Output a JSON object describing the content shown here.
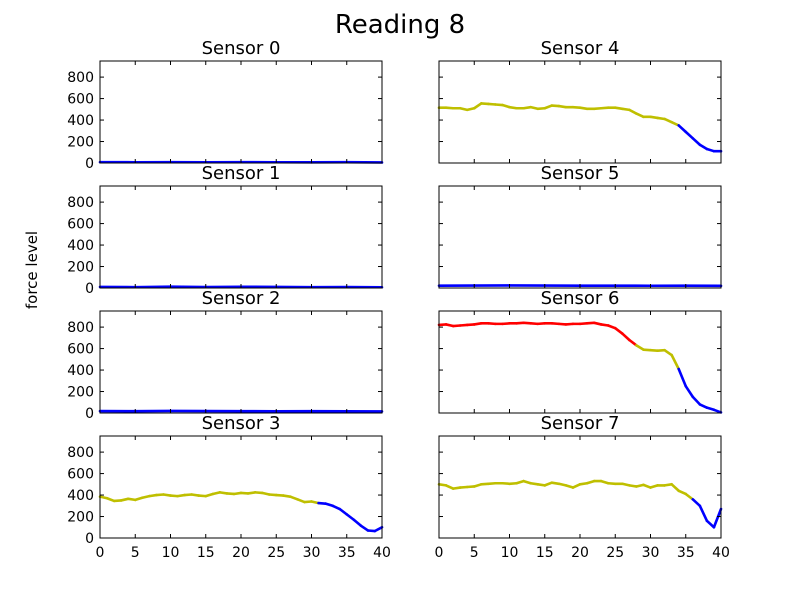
{
  "figure": {
    "title": "Reading 8",
    "ylabel": "force level"
  },
  "chart_data": {
    "type": "line",
    "xlim": [
      0,
      40
    ],
    "ylim": [
      0,
      950
    ],
    "xticks": [
      0,
      5,
      10,
      15,
      20,
      25,
      30,
      35,
      40
    ],
    "yticks": [
      0,
      200,
      400,
      600,
      800
    ],
    "level_colors": {
      "low": "#0000ff",
      "mid": "#bfbf00",
      "high": "#ff0000"
    },
    "panels": [
      {
        "title": "Sensor 0",
        "col": 0,
        "row": 0,
        "x": [
          0,
          5,
          10,
          15,
          20,
          25,
          30,
          35,
          40
        ],
        "y": [
          8,
          7,
          8,
          7,
          8,
          7,
          6,
          8,
          5
        ],
        "level": [
          "low",
          "low",
          "low",
          "low",
          "low",
          "low",
          "low",
          "low",
          "low"
        ]
      },
      {
        "title": "Sensor 1",
        "col": 0,
        "row": 1,
        "x": [
          0,
          5,
          10,
          15,
          20,
          25,
          30,
          35,
          40
        ],
        "y": [
          10,
          8,
          12,
          9,
          11,
          10,
          8,
          9,
          7
        ],
        "level": [
          "low",
          "low",
          "low",
          "low",
          "low",
          "low",
          "low",
          "low",
          "low"
        ]
      },
      {
        "title": "Sensor 2",
        "col": 0,
        "row": 2,
        "x": [
          0,
          5,
          10,
          15,
          20,
          25,
          30,
          35,
          40
        ],
        "y": [
          18,
          17,
          19,
          18,
          17,
          16,
          17,
          16,
          15
        ],
        "level": [
          "low",
          "low",
          "low",
          "low",
          "low",
          "low",
          "low",
          "low",
          "low"
        ]
      },
      {
        "title": "Sensor 3",
        "col": 0,
        "row": 3,
        "x": [
          0,
          1,
          2,
          3,
          4,
          5,
          6,
          7,
          8,
          9,
          10,
          11,
          12,
          13,
          14,
          15,
          16,
          17,
          18,
          19,
          20,
          21,
          22,
          23,
          24,
          25,
          26,
          27,
          28,
          29,
          30,
          31,
          32,
          33,
          34,
          35,
          36,
          37,
          38,
          39,
          40
        ],
        "y": [
          385,
          370,
          345,
          350,
          365,
          355,
          375,
          390,
          400,
          405,
          395,
          390,
          400,
          405,
          395,
          390,
          410,
          425,
          415,
          410,
          420,
          415,
          425,
          420,
          405,
          400,
          395,
          385,
          360,
          335,
          340,
          325,
          320,
          300,
          270,
          220,
          170,
          115,
          70,
          65,
          100
        ],
        "level": [
          "mid",
          "mid",
          "mid",
          "mid",
          "mid",
          "mid",
          "mid",
          "mid",
          "mid",
          "mid",
          "mid",
          "mid",
          "mid",
          "mid",
          "mid",
          "mid",
          "mid",
          "mid",
          "mid",
          "mid",
          "mid",
          "mid",
          "mid",
          "mid",
          "mid",
          "mid",
          "mid",
          "mid",
          "mid",
          "mid",
          "mid",
          "mid",
          "low",
          "low",
          "low",
          "low",
          "low",
          "low",
          "low",
          "low",
          "low"
        ]
      },
      {
        "title": "Sensor 4",
        "col": 1,
        "row": 0,
        "x": [
          0,
          1,
          2,
          3,
          4,
          5,
          6,
          7,
          8,
          9,
          10,
          11,
          12,
          13,
          14,
          15,
          16,
          17,
          18,
          19,
          20,
          21,
          22,
          23,
          24,
          25,
          26,
          27,
          28,
          29,
          30,
          31,
          32,
          33,
          34,
          35,
          36,
          37,
          38,
          39,
          40
        ],
        "y": [
          515,
          515,
          510,
          510,
          495,
          510,
          555,
          550,
          545,
          540,
          520,
          510,
          510,
          520,
          505,
          510,
          535,
          530,
          520,
          520,
          515,
          505,
          505,
          510,
          515,
          515,
          505,
          495,
          460,
          430,
          430,
          420,
          410,
          380,
          350,
          290,
          230,
          170,
          130,
          110,
          110
        ],
        "level": [
          "mid",
          "mid",
          "mid",
          "mid",
          "mid",
          "mid",
          "mid",
          "mid",
          "mid",
          "mid",
          "mid",
          "mid",
          "mid",
          "mid",
          "mid",
          "mid",
          "mid",
          "mid",
          "mid",
          "mid",
          "mid",
          "mid",
          "mid",
          "mid",
          "mid",
          "mid",
          "mid",
          "mid",
          "mid",
          "mid",
          "mid",
          "mid",
          "mid",
          "mid",
          "mid",
          "low",
          "low",
          "low",
          "low",
          "low",
          "low"
        ]
      },
      {
        "title": "Sensor 5",
        "col": 1,
        "row": 1,
        "x": [
          0,
          5,
          10,
          15,
          20,
          25,
          30,
          35,
          40
        ],
        "y": [
          22,
          23,
          24,
          23,
          22,
          22,
          21,
          22,
          20
        ],
        "level": [
          "low",
          "low",
          "low",
          "low",
          "low",
          "low",
          "low",
          "low",
          "low"
        ]
      },
      {
        "title": "Sensor 6",
        "col": 1,
        "row": 2,
        "x": [
          0,
          1,
          2,
          3,
          4,
          5,
          6,
          7,
          8,
          9,
          10,
          11,
          12,
          13,
          14,
          15,
          16,
          17,
          18,
          19,
          20,
          21,
          22,
          23,
          24,
          25,
          26,
          27,
          28,
          29,
          30,
          31,
          32,
          33,
          34,
          35,
          36,
          37,
          38,
          39,
          40
        ],
        "y": [
          820,
          825,
          810,
          815,
          820,
          825,
          835,
          835,
          830,
          830,
          835,
          835,
          840,
          835,
          830,
          835,
          835,
          830,
          825,
          830,
          830,
          835,
          840,
          825,
          815,
          790,
          740,
          680,
          630,
          590,
          585,
          580,
          585,
          540,
          410,
          250,
          150,
          80,
          50,
          30,
          5
        ],
        "level": [
          "high",
          "high",
          "high",
          "high",
          "high",
          "high",
          "high",
          "high",
          "high",
          "high",
          "high",
          "high",
          "high",
          "high",
          "high",
          "high",
          "high",
          "high",
          "high",
          "high",
          "high",
          "high",
          "high",
          "high",
          "high",
          "high",
          "high",
          "high",
          "high",
          "mid",
          "mid",
          "mid",
          "mid",
          "mid",
          "mid",
          "low",
          "low",
          "low",
          "low",
          "low",
          "low"
        ]
      },
      {
        "title": "Sensor 7",
        "col": 1,
        "row": 3,
        "x": [
          0,
          1,
          2,
          3,
          4,
          5,
          6,
          7,
          8,
          9,
          10,
          11,
          12,
          13,
          14,
          15,
          16,
          17,
          18,
          19,
          20,
          21,
          22,
          23,
          24,
          25,
          26,
          27,
          28,
          29,
          30,
          31,
          32,
          33,
          34,
          35,
          36,
          37,
          38,
          39,
          40
        ],
        "y": [
          500,
          490,
          460,
          470,
          475,
          480,
          500,
          505,
          510,
          510,
          505,
          510,
          530,
          510,
          500,
          490,
          515,
          505,
          490,
          470,
          500,
          510,
          530,
          530,
          510,
          505,
          505,
          490,
          480,
          495,
          470,
          490,
          490,
          500,
          440,
          410,
          360,
          300,
          160,
          100,
          270
        ],
        "level": [
          "mid",
          "mid",
          "mid",
          "mid",
          "mid",
          "mid",
          "mid",
          "mid",
          "mid",
          "mid",
          "mid",
          "mid",
          "mid",
          "mid",
          "mid",
          "mid",
          "mid",
          "mid",
          "mid",
          "mid",
          "mid",
          "mid",
          "mid",
          "mid",
          "mid",
          "mid",
          "mid",
          "mid",
          "mid",
          "mid",
          "mid",
          "mid",
          "mid",
          "mid",
          "mid",
          "mid",
          "mid",
          "low",
          "low",
          "low",
          "low"
        ]
      }
    ]
  }
}
